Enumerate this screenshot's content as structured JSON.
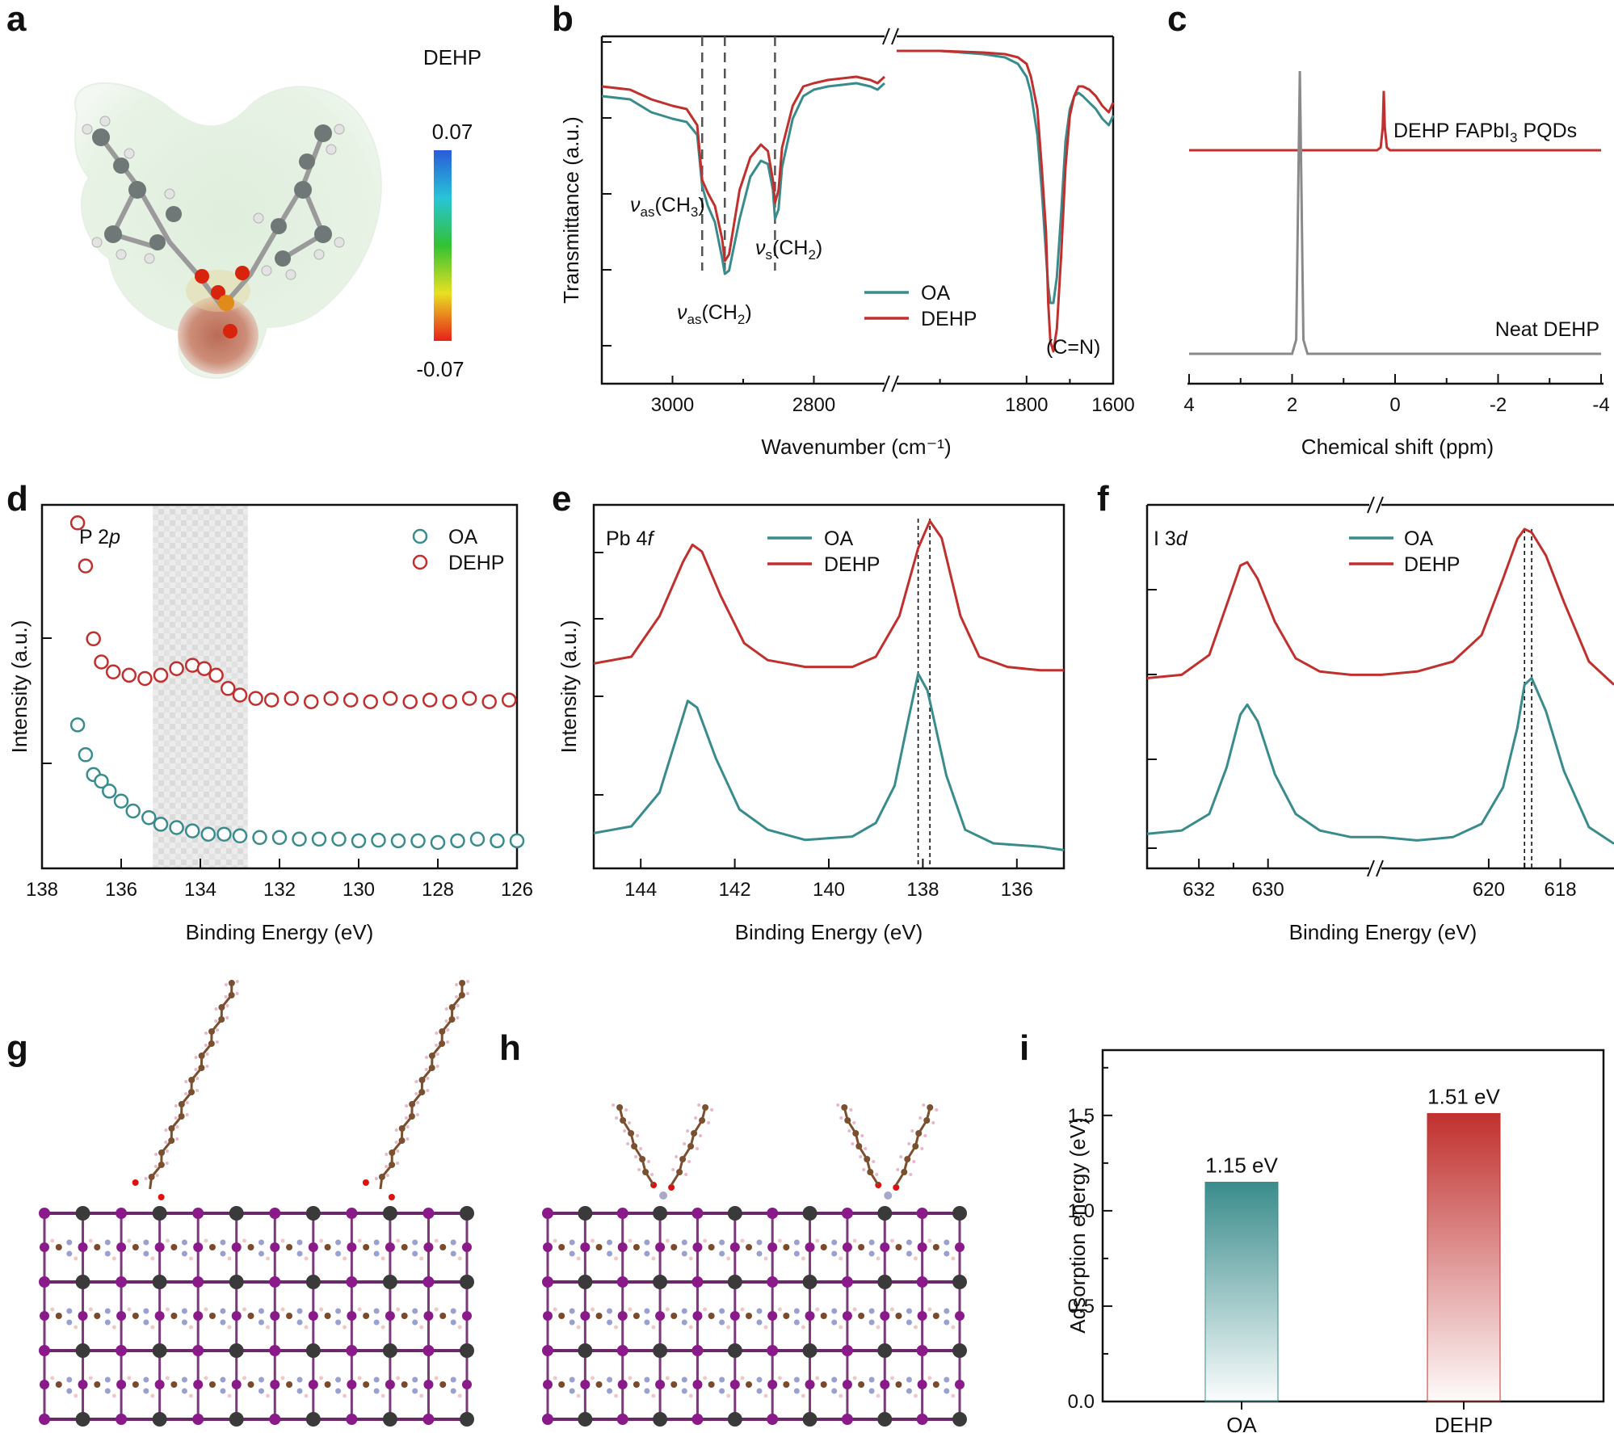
{
  "colors": {
    "oa": "#3a8c8c",
    "dehp": "#c0302e",
    "neat": "#8a8a8a",
    "axis": "#111111",
    "dash": "#555555"
  },
  "panel_labels": [
    "a",
    "b",
    "c",
    "d",
    "e",
    "f",
    "g",
    "h",
    "i"
  ],
  "panel_a": {
    "title": "DEHP",
    "colorbar_max": "0.07",
    "colorbar_min": "-0.07",
    "image": "dehp-electrostatic-potential-molecule"
  },
  "chart_data": [
    {
      "id": "b",
      "type": "line",
      "xlabel": "Wavenumber (cm⁻¹)",
      "ylabel": "Transmittance (a.u.)",
      "x_ticks": [
        "3000",
        "2800",
        "1800",
        "1600"
      ],
      "broken_axis": true,
      "x_ranges": [
        [
          3100,
          2700
        ],
        [
          2100,
          1600
        ]
      ],
      "annotations": [
        "νas(CH3)",
        "νas(CH2)",
        "νs(CH2)",
        "(C=N)"
      ],
      "dashed_markers_cm": [
        2958,
        2926,
        2855
      ],
      "legend": [
        "OA",
        "DEHP"
      ],
      "series": [
        {
          "name": "OA",
          "x": [
            3100,
            3060,
            3030,
            3000,
            2980,
            2965,
            2958,
            2950,
            2940,
            2930,
            2926,
            2920,
            2905,
            2890,
            2875,
            2865,
            2858,
            2855,
            2850,
            2845,
            2830,
            2815,
            2800,
            2780,
            2760,
            2740,
            2720,
            2710,
            2700,
            2100,
            2000,
            1900,
            1850,
            1820,
            1800,
            1790,
            1775,
            1765,
            1755,
            1750,
            1745,
            1738,
            1730,
            1720,
            1710,
            1700,
            1690,
            1680,
            1670,
            1655,
            1640,
            1625,
            1610,
            1600
          ],
          "y": [
            0.84,
            0.83,
            0.79,
            0.77,
            0.76,
            0.72,
            0.56,
            0.5,
            0.45,
            0.34,
            0.29,
            0.3,
            0.46,
            0.59,
            0.64,
            0.63,
            0.55,
            0.46,
            0.49,
            0.62,
            0.77,
            0.84,
            0.86,
            0.87,
            0.875,
            0.88,
            0.87,
            0.86,
            0.88,
            0.98,
            0.98,
            0.97,
            0.96,
            0.94,
            0.9,
            0.85,
            0.72,
            0.55,
            0.35,
            0.25,
            0.2,
            0.2,
            0.28,
            0.48,
            0.7,
            0.8,
            0.84,
            0.85,
            0.84,
            0.82,
            0.8,
            0.77,
            0.75,
            0.78
          ]
        },
        {
          "name": "DEHP",
          "x": [
            3100,
            3060,
            3030,
            3000,
            2980,
            2965,
            2958,
            2950,
            2940,
            2930,
            2926,
            2920,
            2905,
            2890,
            2875,
            2865,
            2858,
            2855,
            2850,
            2845,
            2830,
            2815,
            2800,
            2780,
            2760,
            2740,
            2720,
            2710,
            2700,
            2100,
            2000,
            1900,
            1850,
            1820,
            1800,
            1790,
            1775,
            1765,
            1755,
            1750,
            1745,
            1738,
            1730,
            1720,
            1710,
            1700,
            1690,
            1680,
            1670,
            1655,
            1640,
            1625,
            1610,
            1600
          ],
          "y": [
            0.87,
            0.86,
            0.83,
            0.81,
            0.8,
            0.75,
            0.58,
            0.54,
            0.5,
            0.4,
            0.33,
            0.35,
            0.55,
            0.65,
            0.69,
            0.67,
            0.58,
            0.51,
            0.55,
            0.68,
            0.81,
            0.87,
            0.88,
            0.89,
            0.895,
            0.9,
            0.89,
            0.88,
            0.9,
            0.98,
            0.98,
            0.975,
            0.97,
            0.96,
            0.94,
            0.9,
            0.8,
            0.62,
            0.42,
            0.2,
            0.08,
            0.05,
            0.12,
            0.35,
            0.62,
            0.78,
            0.84,
            0.87,
            0.87,
            0.86,
            0.84,
            0.81,
            0.79,
            0.82
          ]
        }
      ]
    },
    {
      "id": "c",
      "type": "line",
      "xlabel": "Chemical shift (ppm)",
      "x_ticks": [
        "4",
        "2",
        "0",
        "-2",
        "-4"
      ],
      "xlim": [
        4,
        -4
      ],
      "labels": [
        "DEHP FAPbI3 PQDs",
        "Neat DEHP"
      ],
      "series": [
        {
          "name": "DEHP FAPbI3 PQDs",
          "x": [
            4,
            0.35,
            0.28,
            0.24,
            0.22,
            0.2,
            0.16,
            0.1,
            -4
          ],
          "y": [
            0.72,
            0.72,
            0.73,
            0.8,
            0.93,
            0.8,
            0.73,
            0.72,
            0.72
          ]
        },
        {
          "name": "Neat DEHP",
          "x": [
            4,
            2.0,
            1.92,
            1.88,
            1.85,
            1.82,
            1.78,
            1.7,
            -4
          ],
          "y": [
            0.0,
            0.0,
            0.05,
            0.6,
            1.0,
            0.6,
            0.05,
            0.0,
            0.0
          ]
        }
      ]
    },
    {
      "id": "d",
      "type": "scatter",
      "title": "P 2p",
      "xlabel": "Binding Energy (eV)",
      "ylabel": "Intensity (a.u.)",
      "xlim": [
        138,
        126
      ],
      "x_ticks": [
        "138",
        "136",
        "134",
        "132",
        "130",
        "128",
        "126"
      ],
      "shaded_region_ev": [
        135.2,
        132.8
      ],
      "legend": [
        "OA",
        "DEHP"
      ],
      "series": [
        {
          "name": "OA",
          "x": [
            137.1,
            136.9,
            136.7,
            136.5,
            136.3,
            136.0,
            135.7,
            135.3,
            135.0,
            134.6,
            134.2,
            133.8,
            133.4,
            133.0,
            132.5,
            132.0,
            131.5,
            131.0,
            130.5,
            130.0,
            129.5,
            129.0,
            128.5,
            128.0,
            127.5,
            127.0,
            126.5,
            126.0
          ],
          "y": [
            0.36,
            0.27,
            0.21,
            0.19,
            0.16,
            0.13,
            0.1,
            0.08,
            0.06,
            0.05,
            0.04,
            0.03,
            0.03,
            0.025,
            0.02,
            0.02,
            0.015,
            0.015,
            0.015,
            0.01,
            0.012,
            0.01,
            0.01,
            0.005,
            0.01,
            0.015,
            0.01,
            0.01
          ]
        },
        {
          "name": "DEHP",
          "x": [
            137.1,
            136.9,
            136.7,
            136.5,
            136.2,
            135.8,
            135.4,
            135.0,
            134.6,
            134.2,
            133.9,
            133.6,
            133.3,
            133.0,
            132.6,
            132.2,
            131.7,
            131.2,
            130.7,
            130.2,
            129.7,
            129.2,
            128.7,
            128.2,
            127.7,
            127.2,
            126.7,
            126.2
          ],
          "y": [
            0.97,
            0.84,
            0.62,
            0.55,
            0.52,
            0.51,
            0.5,
            0.51,
            0.53,
            0.54,
            0.53,
            0.51,
            0.47,
            0.45,
            0.44,
            0.435,
            0.44,
            0.43,
            0.44,
            0.435,
            0.43,
            0.44,
            0.43,
            0.435,
            0.43,
            0.44,
            0.43,
            0.435
          ]
        }
      ]
    },
    {
      "id": "e",
      "type": "line",
      "title": "Pb 4f",
      "xlabel": "Binding Energy (eV)",
      "ylabel": "Intensity (a.u.)",
      "xlim": [
        145,
        135
      ],
      "x_ticks": [
        "144",
        "142",
        "140",
        "138",
        "136"
      ],
      "dashed_markers_ev": [
        138.1,
        137.85
      ],
      "legend": [
        "OA",
        "DEHP"
      ],
      "series": [
        {
          "name": "OA",
          "x": [
            145,
            144.2,
            143.6,
            143.2,
            143.0,
            142.8,
            142.4,
            141.9,
            141.3,
            140.5,
            139.5,
            139.0,
            138.6,
            138.3,
            138.1,
            137.9,
            137.5,
            137.1,
            136.5,
            135.5,
            135.0
          ],
          "y": [
            0.08,
            0.1,
            0.2,
            0.38,
            0.47,
            0.45,
            0.3,
            0.15,
            0.09,
            0.06,
            0.07,
            0.11,
            0.22,
            0.42,
            0.55,
            0.5,
            0.25,
            0.09,
            0.05,
            0.04,
            0.03
          ]
        },
        {
          "name": "DEHP",
          "x": [
            145,
            144.2,
            143.6,
            143.1,
            142.9,
            142.7,
            142.3,
            141.8,
            141.3,
            140.5,
            139.5,
            139.0,
            138.5,
            138.1,
            137.85,
            137.6,
            137.2,
            136.8,
            136.2,
            135.5,
            135.0
          ],
          "y": [
            0.58,
            0.6,
            0.72,
            0.88,
            0.93,
            0.91,
            0.78,
            0.64,
            0.59,
            0.57,
            0.57,
            0.6,
            0.72,
            0.92,
            1.0,
            0.95,
            0.72,
            0.6,
            0.57,
            0.56,
            0.56
          ]
        }
      ]
    },
    {
      "id": "f",
      "type": "line",
      "title": "I 3d",
      "xlabel": "Binding Energy (eV)",
      "broken_axis": true,
      "x_ticks": [
        "632",
        "630",
        "620",
        "618"
      ],
      "dashed_markers_ev": [
        619.0,
        618.8
      ],
      "legend": [
        "OA",
        "DEHP"
      ],
      "series": [
        {
          "name": "OA",
          "x": [
            633.5,
            632.5,
            631.7,
            631.2,
            630.8,
            630.6,
            630.3,
            629.8,
            629.2,
            628.5,
            627.6,
            623.0,
            622.0,
            621.0,
            620.2,
            619.6,
            619.2,
            619.0,
            618.8,
            618.4,
            617.9,
            617.2,
            616.5
          ],
          "y": [
            0.08,
            0.09,
            0.14,
            0.28,
            0.44,
            0.47,
            0.42,
            0.26,
            0.14,
            0.09,
            0.07,
            0.07,
            0.06,
            0.07,
            0.11,
            0.22,
            0.4,
            0.53,
            0.55,
            0.45,
            0.27,
            0.1,
            0.05
          ]
        },
        {
          "name": "DEHP",
          "x": [
            633.5,
            632.5,
            631.7,
            631.2,
            630.8,
            630.6,
            630.3,
            629.8,
            629.2,
            628.5,
            627.6,
            623.0,
            622.0,
            621.0,
            620.2,
            619.6,
            619.2,
            619.0,
            618.8,
            618.4,
            617.9,
            617.2,
            616.5
          ],
          "y": [
            0.55,
            0.56,
            0.62,
            0.77,
            0.89,
            0.9,
            0.85,
            0.72,
            0.61,
            0.57,
            0.56,
            0.56,
            0.57,
            0.6,
            0.68,
            0.85,
            0.97,
            1.0,
            0.99,
            0.92,
            0.78,
            0.6,
            0.53
          ]
        }
      ]
    },
    {
      "id": "i",
      "type": "bar",
      "ylabel": "Adsorption energy (eV)",
      "categories": [
        "OA",
        "DEHP"
      ],
      "values": [
        1.15,
        1.51
      ],
      "data_labels": [
        "1.15 eV",
        "1.51 eV"
      ],
      "ylim": [
        0,
        1.8
      ],
      "y_ticks": [
        "0.0",
        "0.5",
        "1.0",
        "1.5"
      ]
    }
  ],
  "panel_g": {
    "image": "oa-on-perovskite-surface-model"
  },
  "panel_h": {
    "image": "dehp-on-perovskite-surface-model"
  }
}
